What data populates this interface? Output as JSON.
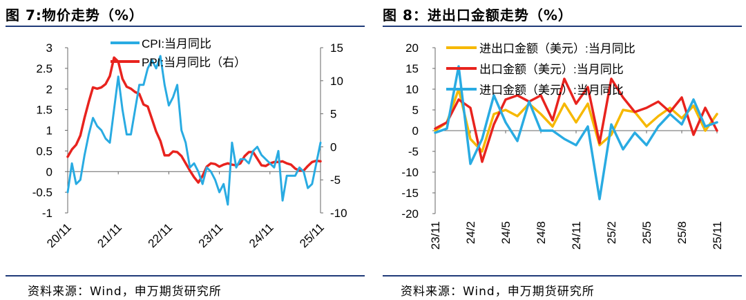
{
  "left": {
    "title": "图 7:物价走势（%）",
    "source": "资料来源：Wind，申万期货研究所",
    "chart_data": {
      "type": "line",
      "x_tick_labels": [
        "20/11",
        "21/11",
        "22/11",
        "23/11",
        "24/11",
        "25/11"
      ],
      "x": [
        "2020-11",
        "2020-12",
        "2021-01",
        "2021-02",
        "2021-03",
        "2021-04",
        "2021-05",
        "2021-06",
        "2021-07",
        "2021-08",
        "2021-09",
        "2021-10",
        "2021-11",
        "2021-12",
        "2022-01",
        "2022-02",
        "2022-03",
        "2022-04",
        "2022-05",
        "2022-06",
        "2022-07",
        "2022-08",
        "2022-09",
        "2022-10",
        "2022-11",
        "2022-12",
        "2023-01",
        "2023-02",
        "2023-03",
        "2023-04",
        "2023-05",
        "2023-06",
        "2023-07",
        "2023-08",
        "2023-09",
        "2023-10",
        "2023-11",
        "2023-12",
        "2024-01",
        "2024-02",
        "2024-03",
        "2024-04",
        "2024-05",
        "2024-06",
        "2024-07",
        "2024-08",
        "2024-09",
        "2024-10",
        "2024-11",
        "2024-12",
        "2025-01",
        "2025-02",
        "2025-03",
        "2025-04",
        "2025-05",
        "2025-06",
        "2025-07",
        "2025-08",
        "2025-09",
        "2025-10",
        "2025-11"
      ],
      "y_left": {
        "min": -1,
        "max": 3,
        "ticks": [
          -1,
          -0.5,
          0,
          0.5,
          1,
          1.5,
          2,
          2.5,
          3
        ]
      },
      "y_right": {
        "min": -10,
        "max": 15,
        "ticks": [
          -10,
          -5,
          0,
          5,
          10,
          15
        ]
      },
      "series": [
        {
          "name": "CPI:当月同比",
          "axis": "left",
          "color": "#29abe2",
          "values": [
            -0.5,
            0.2,
            -0.3,
            -0.2,
            0.4,
            0.9,
            1.3,
            1.1,
            1.0,
            0.8,
            0.7,
            1.5,
            2.3,
            1.5,
            0.9,
            0.9,
            1.5,
            2.1,
            2.1,
            2.5,
            2.7,
            2.5,
            2.8,
            2.1,
            1.6,
            1.8,
            2.1,
            1.0,
            0.7,
            0.1,
            0.2,
            0.0,
            -0.3,
            0.1,
            0.0,
            -0.2,
            -0.5,
            -0.3,
            -0.8,
            0.7,
            0.1,
            0.3,
            0.3,
            0.2,
            0.5,
            0.6,
            0.4,
            0.3,
            0.2,
            0.1,
            0.5,
            -0.7,
            -0.1,
            -0.1,
            -0.1,
            0.1,
            0.0,
            -0.4,
            -0.3,
            0.2,
            0.7
          ]
        },
        {
          "name": "PPI:当月同比（右）",
          "axis": "right",
          "color": "#e8231e",
          "values": [
            -1.5,
            -0.4,
            0.3,
            1.7,
            4.4,
            6.8,
            9.0,
            8.8,
            9.0,
            9.5,
            10.7,
            13.5,
            12.9,
            10.3,
            9.1,
            8.8,
            8.3,
            8.0,
            6.4,
            6.1,
            4.2,
            2.3,
            0.9,
            -1.3,
            -1.3,
            -0.7,
            -0.8,
            -1.4,
            -2.5,
            -3.6,
            -4.6,
            -5.4,
            -4.4,
            -3.0,
            -2.5,
            -2.6,
            -3.0,
            -2.7,
            -2.5,
            -2.7,
            -2.8,
            -2.5,
            -1.4,
            -0.8,
            -0.8,
            -1.8,
            -2.8,
            -2.9,
            -2.5,
            -2.3,
            -2.3,
            -2.2,
            -2.5,
            -2.7,
            -3.3,
            -3.6,
            -3.6,
            -2.9,
            -2.3,
            -2.1,
            -2.2
          ]
        }
      ]
    }
  },
  "right": {
    "title": "图 8：进出口金额走势（%）",
    "source": "资料来源：Wind，申万期货研究所",
    "chart_data": {
      "type": "line",
      "x_tick_labels": [
        "23/11",
        "24/2",
        "24/5",
        "24/8",
        "24/11",
        "25/2",
        "25/5",
        "25/8",
        "25/11"
      ],
      "x": [
        "2023-11",
        "2023-12",
        "2024-01",
        "2024-02",
        "2024-03",
        "2024-04",
        "2024-05",
        "2024-06",
        "2024-07",
        "2024-08",
        "2024-09",
        "2024-10",
        "2024-11",
        "2024-12",
        "2025-01",
        "2025-02",
        "2025-03",
        "2025-04",
        "2025-05",
        "2025-06",
        "2025-07",
        "2025-08",
        "2025-09",
        "2025-10",
        "2025-11"
      ],
      "y": {
        "min": -20,
        "max": 20,
        "ticks": [
          -20,
          -15,
          -10,
          -5,
          0,
          5,
          10,
          15,
          20
        ]
      },
      "series": [
        {
          "name": "进出口金额（美元）:当月同比",
          "color": "#f6b800",
          "values": [
            0,
            2,
            10,
            -2,
            -5,
            4,
            5,
            3.5,
            6.5,
            4,
            1,
            6.5,
            2,
            6.5,
            -3.5,
            -1,
            5,
            4.5,
            1,
            3.5,
            5.5,
            3,
            6,
            0,
            4
          ]
        },
        {
          "name": "出口金额（美元）:当月同比",
          "color": "#e8231e",
          "values": [
            0.5,
            2,
            7.5,
            5.5,
            -7.5,
            1.5,
            7.5,
            8.5,
            7,
            8.5,
            2.5,
            12.5,
            6.5,
            10.5,
            -3,
            12.5,
            8,
            4.5,
            5.5,
            7,
            4.5,
            8,
            -1,
            5.5,
            0
          ]
        },
        {
          "name": "进口金额（美元）:当月同比",
          "color": "#29abe2",
          "values": [
            -0.5,
            0.5,
            15.5,
            -8,
            -2,
            8.5,
            2,
            -2.5,
            7,
            0,
            0,
            -2,
            -3.5,
            1,
            -16.5,
            1.5,
            -4.5,
            -0.5,
            -3.5,
            1,
            4,
            1.5,
            7.5,
            1,
            2
          ]
        }
      ]
    }
  }
}
